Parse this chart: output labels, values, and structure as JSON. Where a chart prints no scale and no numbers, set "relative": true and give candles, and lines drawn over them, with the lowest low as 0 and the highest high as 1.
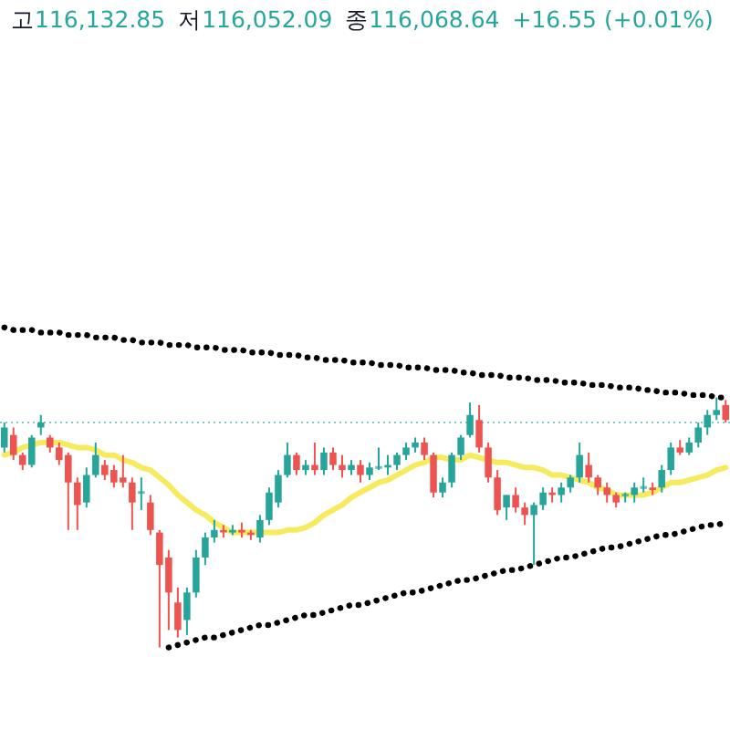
{
  "chart_data": {
    "type": "candlestick",
    "relative": true,
    "annotations": [
      "고116,132.85",
      "저116,052.09",
      "종116,068.64",
      "+16.55 (+0.01%)"
    ],
    "categories": [
      null,
      null,
      null,
      null,
      null,
      null,
      null,
      null,
      null,
      null,
      null,
      null,
      null,
      null,
      null,
      null,
      null,
      null,
      null,
      null,
      null,
      null,
      null,
      null,
      null,
      null,
      null,
      null,
      null,
      null,
      null,
      null,
      null,
      null,
      null,
      null,
      null,
      null,
      null,
      null,
      null,
      null,
      null,
      null,
      null,
      null,
      null,
      null,
      null,
      null,
      null,
      null,
      null,
      null,
      null,
      null,
      null,
      null,
      null,
      null,
      null,
      null,
      null,
      null,
      null,
      null,
      null,
      null,
      null,
      null,
      null,
      null,
      null,
      null,
      null,
      null,
      null,
      null,
      null,
      null
    ],
    "ohlc": [
      [
        0.8,
        0.9,
        0.78,
        0.88
      ],
      [
        0.85,
        0.88,
        0.75,
        0.77
      ],
      [
        0.77,
        0.78,
        0.71,
        0.73
      ],
      [
        0.73,
        0.85,
        0.72,
        0.84
      ],
      [
        0.88,
        0.93,
        0.85,
        0.9
      ],
      [
        0.84,
        0.85,
        0.78,
        0.8
      ],
      [
        0.8,
        0.82,
        0.73,
        0.75
      ],
      [
        0.77,
        0.78,
        0.47,
        0.66
      ],
      [
        0.66,
        0.68,
        0.47,
        0.57
      ],
      [
        0.58,
        0.72,
        0.56,
        0.69
      ],
      [
        0.69,
        0.82,
        0.68,
        0.77
      ],
      [
        0.73,
        0.75,
        0.67,
        0.69
      ],
      [
        0.71,
        0.73,
        0.64,
        0.66
      ],
      [
        0.68,
        0.77,
        0.64,
        0.66
      ],
      [
        0.66,
        0.68,
        0.47,
        0.58
      ],
      [
        0.62,
        0.68,
        0.55,
        0.62
      ],
      [
        0.58,
        0.61,
        0.45,
        0.47
      ],
      [
        0.46,
        0.47,
        0.0,
        0.33
      ],
      [
        0.36,
        0.39,
        0.07,
        0.22
      ],
      [
        0.18,
        0.24,
        0.04,
        0.07
      ],
      [
        0.11,
        0.24,
        0.05,
        0.22
      ],
      [
        0.22,
        0.39,
        0.2,
        0.36
      ],
      [
        0.36,
        0.46,
        0.33,
        0.44
      ],
      [
        0.44,
        0.51,
        0.42,
        0.47
      ],
      [
        0.47,
        0.49,
        0.44,
        0.46
      ],
      [
        0.46,
        0.49,
        0.45,
        0.47
      ],
      [
        0.47,
        0.5,
        0.44,
        0.46
      ],
      [
        0.46,
        0.47,
        0.43,
        0.45
      ],
      [
        0.44,
        0.53,
        0.42,
        0.51
      ],
      [
        0.51,
        0.64,
        0.49,
        0.62
      ],
      [
        0.58,
        0.71,
        0.56,
        0.69
      ],
      [
        0.69,
        0.82,
        0.68,
        0.77
      ],
      [
        0.77,
        0.78,
        0.69,
        0.71
      ],
      [
        0.71,
        0.75,
        0.69,
        0.73
      ],
      [
        0.73,
        0.82,
        0.69,
        0.71
      ],
      [
        0.71,
        0.8,
        0.69,
        0.78
      ],
      [
        0.78,
        0.8,
        0.71,
        0.73
      ],
      [
        0.73,
        0.77,
        0.68,
        0.71
      ],
      [
        0.71,
        0.75,
        0.69,
        0.73
      ],
      [
        0.73,
        0.75,
        0.66,
        0.69
      ],
      [
        0.69,
        0.74,
        0.67,
        0.72
      ],
      [
        0.72,
        0.8,
        0.71,
        0.72
      ],
      [
        0.72,
        0.77,
        0.69,
        0.73
      ],
      [
        0.73,
        0.78,
        0.71,
        0.77
      ],
      [
        0.77,
        0.82,
        0.75,
        0.8
      ],
      [
        0.8,
        0.84,
        0.78,
        0.82
      ],
      [
        0.82,
        0.84,
        0.75,
        0.77
      ],
      [
        0.77,
        0.78,
        0.6,
        0.62
      ],
      [
        0.62,
        0.68,
        0.6,
        0.66
      ],
      [
        0.66,
        0.78,
        0.64,
        0.77
      ],
      [
        0.77,
        0.85,
        0.75,
        0.84
      ],
      [
        0.85,
        0.98,
        0.84,
        0.93
      ],
      [
        0.91,
        0.97,
        0.78,
        0.8
      ],
      [
        0.8,
        0.82,
        0.66,
        0.68
      ],
      [
        0.68,
        0.71,
        0.53,
        0.55
      ],
      [
        0.56,
        0.61,
        0.51,
        0.61
      ],
      [
        0.61,
        0.64,
        0.54,
        0.56
      ],
      [
        0.56,
        0.58,
        0.49,
        0.53
      ],
      [
        0.53,
        0.58,
        0.33,
        0.57
      ],
      [
        0.57,
        0.64,
        0.55,
        0.62
      ],
      [
        0.62,
        0.64,
        0.58,
        0.61
      ],
      [
        0.61,
        0.66,
        0.58,
        0.64
      ],
      [
        0.64,
        0.69,
        0.62,
        0.68
      ],
      [
        0.68,
        0.82,
        0.66,
        0.77
      ],
      [
        0.73,
        0.78,
        0.66,
        0.68
      ],
      [
        0.68,
        0.69,
        0.61,
        0.64
      ],
      [
        0.64,
        0.66,
        0.58,
        0.61
      ],
      [
        0.61,
        0.62,
        0.56,
        0.58
      ],
      [
        0.61,
        0.62,
        0.58,
        0.61
      ],
      [
        0.61,
        0.66,
        0.58,
        0.64
      ],
      [
        0.64,
        0.68,
        0.62,
        0.64
      ],
      [
        0.64,
        0.66,
        0.61,
        0.63
      ],
      [
        0.64,
        0.73,
        0.62,
        0.71
      ],
      [
        0.71,
        0.82,
        0.69,
        0.8
      ],
      [
        0.8,
        0.83,
        0.77,
        0.78
      ],
      [
        0.78,
        0.84,
        0.77,
        0.82
      ],
      [
        0.82,
        0.9,
        0.8,
        0.88
      ],
      [
        0.88,
        0.95,
        0.85,
        0.93
      ],
      [
        0.93,
        1.0,
        0.91,
        0.95
      ],
      [
        0.97,
        0.99,
        0.9,
        0.91
      ]
    ],
    "series": [
      {
        "type": "line",
        "color": "#f5e642",
        "values": [
          0.77,
          0.78,
          0.8,
          0.81,
          0.82,
          0.82,
          0.82,
          0.81,
          0.8,
          0.8,
          0.79,
          0.77,
          0.77,
          0.75,
          0.74,
          0.72,
          0.71,
          0.68,
          0.65,
          0.61,
          0.58,
          0.55,
          0.53,
          0.5,
          0.48,
          0.46,
          0.46,
          0.46,
          0.46,
          0.46,
          0.46,
          0.47,
          0.47,
          0.48,
          0.5,
          0.53,
          0.55,
          0.57,
          0.6,
          0.62,
          0.64,
          0.66,
          0.67,
          0.69,
          0.71,
          0.73,
          0.74,
          0.76,
          0.76,
          0.75,
          0.75,
          0.77,
          0.76,
          0.75,
          0.74,
          0.74,
          0.73,
          0.72,
          0.72,
          0.71,
          0.69,
          0.69,
          0.68,
          0.67,
          0.66,
          0.64,
          0.63,
          0.61,
          0.61,
          0.61,
          0.61,
          0.62,
          0.64,
          0.66,
          0.66,
          0.67,
          0.68,
          0.69,
          0.71,
          0.72
        ]
      },
      {
        "type": "line",
        "color": "#000000",
        "line_style": "dotted",
        "values": [
          1.28,
          1.27,
          1.27,
          1.27,
          1.26,
          1.26,
          1.26,
          1.25,
          1.25,
          1.25,
          1.24,
          1.24,
          1.24,
          1.23,
          1.23,
          1.22,
          1.22,
          1.22,
          1.21,
          1.21,
          1.21,
          1.2,
          1.2,
          1.2,
          1.19,
          1.19,
          1.19,
          1.18,
          1.18,
          1.18,
          1.17,
          1.17,
          1.17,
          1.16,
          1.16,
          1.15,
          1.15,
          1.15,
          1.14,
          1.14,
          1.14,
          1.13,
          1.13,
          1.13,
          1.12,
          1.12,
          1.12,
          1.11,
          1.11,
          1.11,
          1.1,
          1.1,
          1.09,
          1.09,
          1.09,
          1.08,
          1.08,
          1.08,
          1.07,
          1.07,
          1.07,
          1.06,
          1.06,
          1.06,
          1.05,
          1.05,
          1.05,
          1.04,
          1.04,
          1.04,
          1.03,
          1.03,
          1.02,
          1.02,
          1.02,
          1.01,
          1.01,
          1.01,
          1.0,
          1.0
        ]
      },
      {
        "type": "line",
        "color": "#000000",
        "line_style": "dotted",
        "values": [
          null,
          null,
          null,
          null,
          null,
          null,
          null,
          null,
          null,
          null,
          null,
          null,
          null,
          null,
          null,
          null,
          null,
          null,
          0.0,
          0.01,
          0.02,
          0.03,
          0.04,
          0.04,
          0.05,
          0.06,
          0.07,
          0.08,
          0.09,
          0.09,
          0.1,
          0.11,
          0.12,
          0.13,
          0.13,
          0.14,
          0.15,
          0.16,
          0.17,
          0.17,
          0.18,
          0.19,
          0.2,
          0.21,
          0.22,
          0.22,
          0.23,
          0.24,
          0.25,
          0.26,
          0.27,
          0.27,
          0.28,
          0.29,
          0.3,
          0.31,
          0.31,
          0.32,
          0.33,
          0.34,
          0.35,
          0.36,
          0.36,
          0.37,
          0.38,
          0.39,
          0.4,
          0.4,
          0.41,
          0.42,
          0.43,
          0.44,
          0.45,
          0.45,
          0.46,
          0.47,
          0.48,
          0.49,
          0.49,
          0.5
        ]
      }
    ],
    "ref_lines": [
      {
        "axis": "y",
        "value": 0.9,
        "color": "#80cbc4",
        "line_style": "dotted"
      }
    ]
  }
}
